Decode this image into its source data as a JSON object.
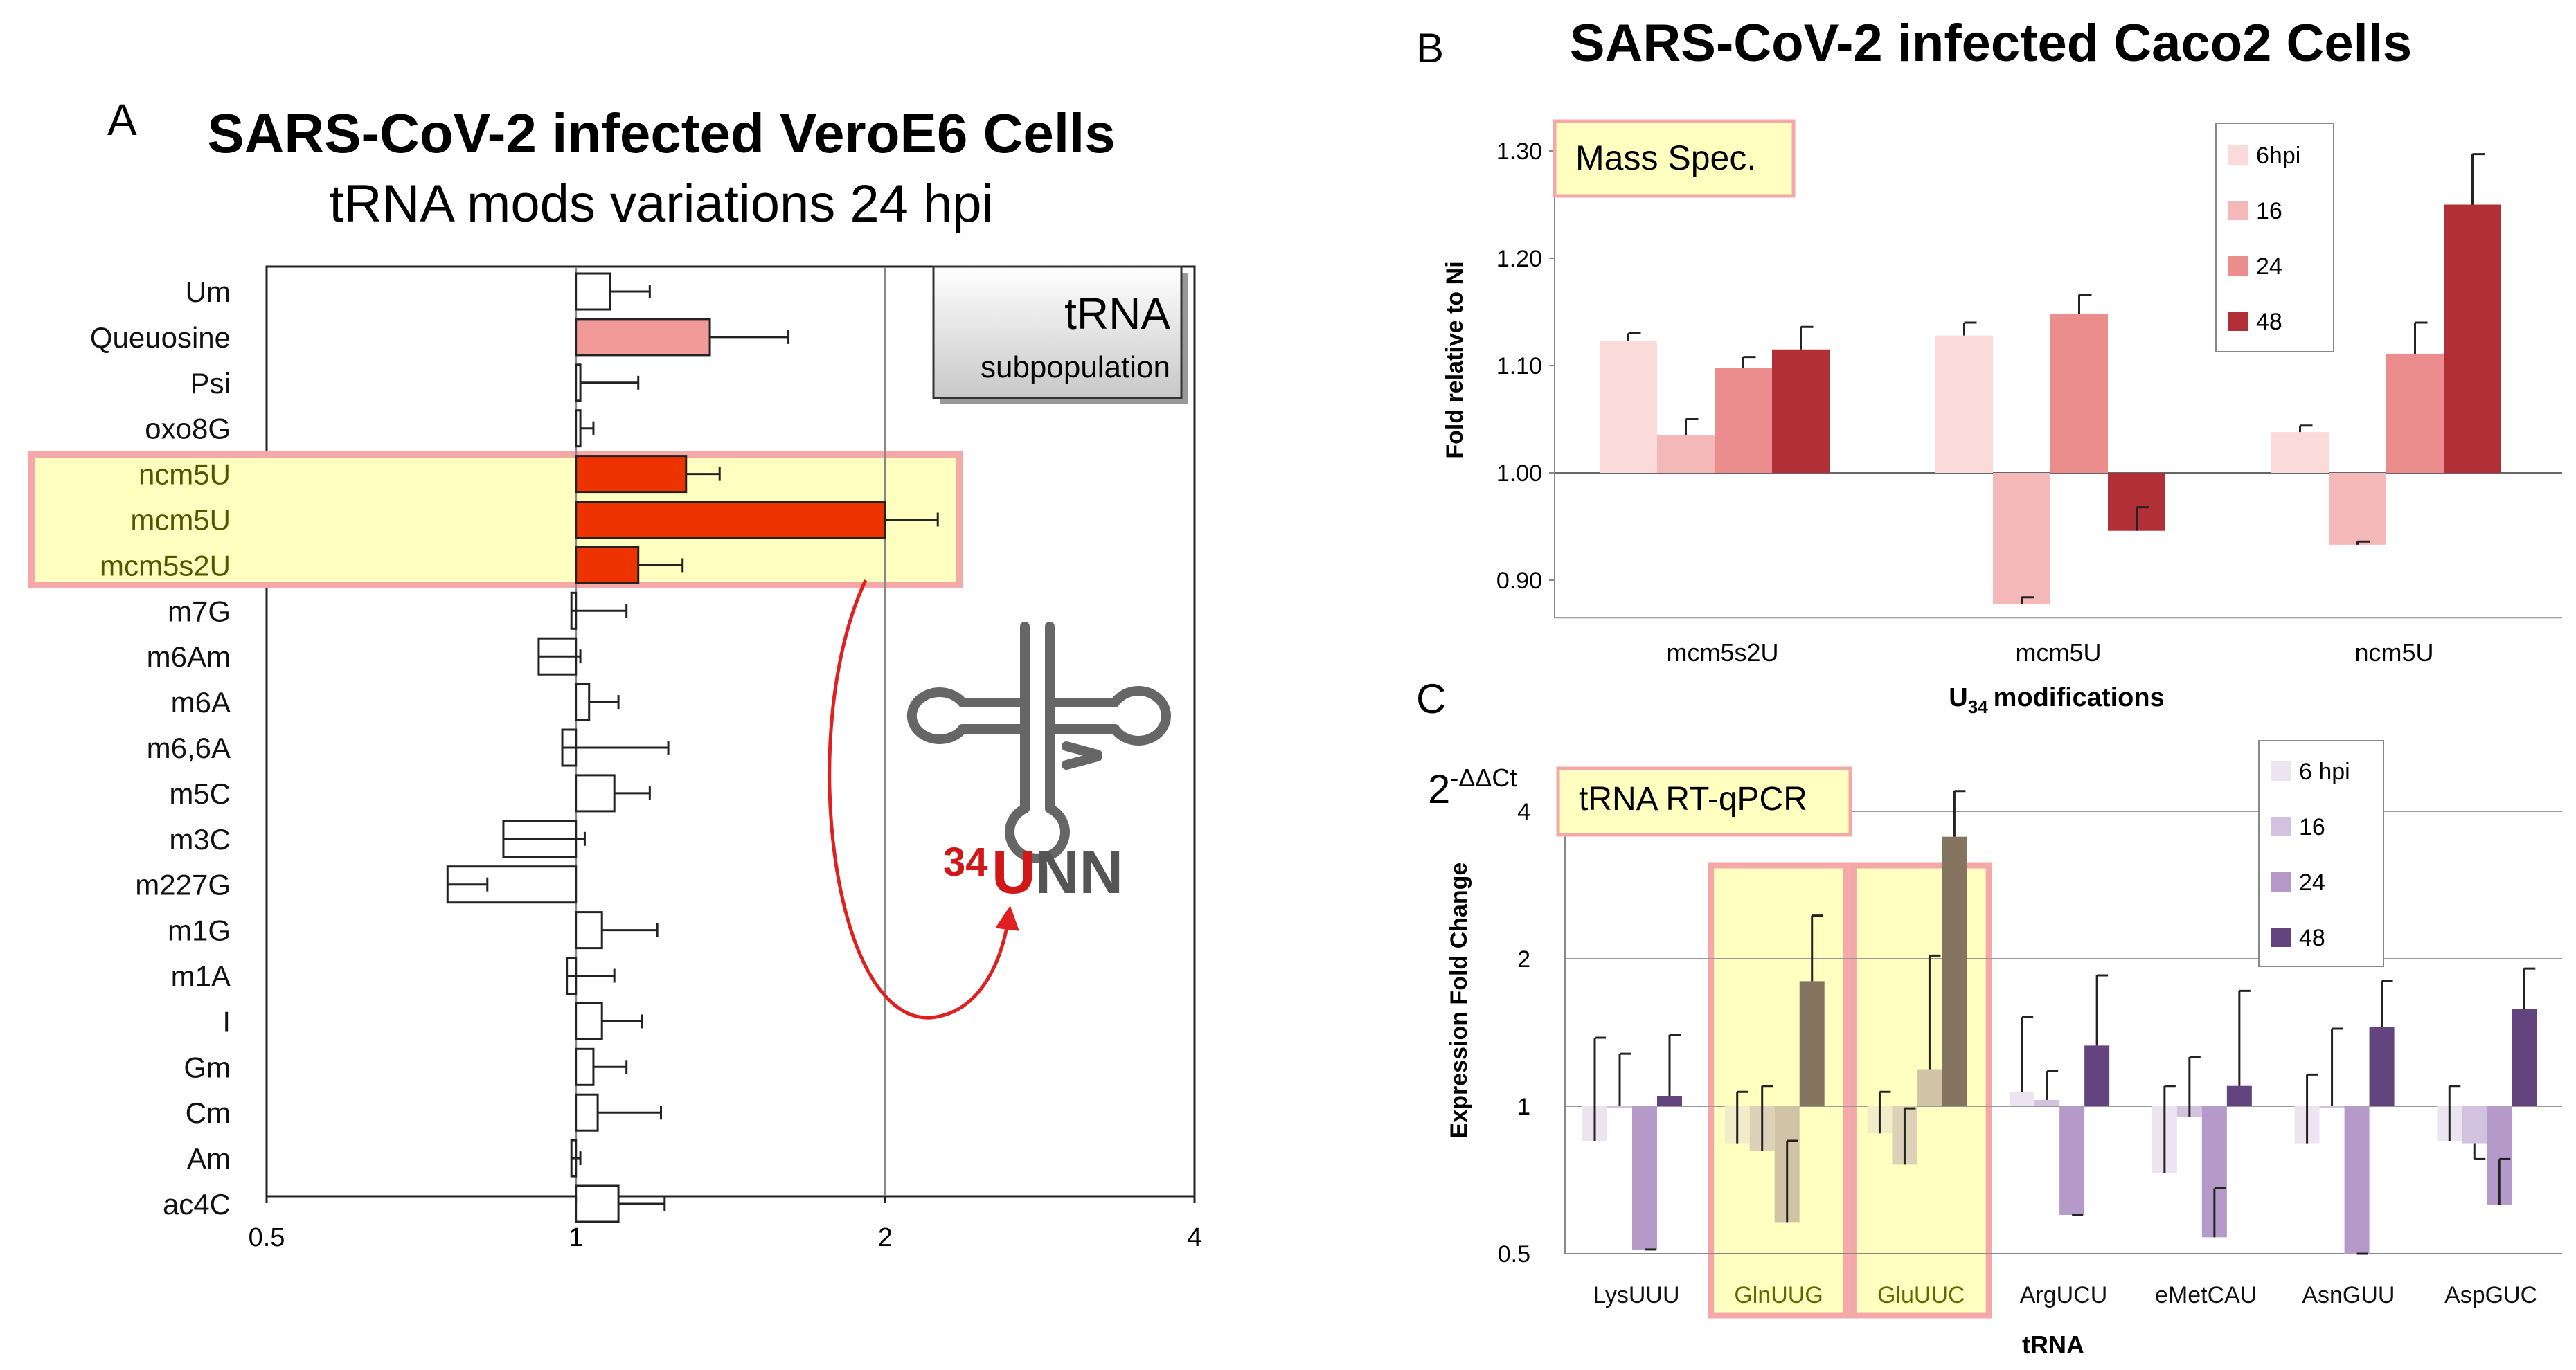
{
  "panelA": {
    "letter": "A",
    "title": "SARS-CoV-2 infected VeroE6 Cells",
    "subtitle": "tRNA mods variations 24 hpi",
    "box_title": "tRNA",
    "box_subtitle": "subpopulation",
    "colors": {
      "highlight_bar": "#ee3300",
      "queuosine_bar": "#f29a99",
      "default_bar": "#ffffff",
      "highlight_bg": "#ffffc0",
      "highlight_border": "#f4a8a8"
    },
    "chart_data": {
      "type": "bar",
      "orientation": "horizontal",
      "xscale": "log2",
      "xlim": [
        0.5,
        4
      ],
      "xticks": [
        "0.5",
        "1",
        "2",
        "4"
      ],
      "categories": [
        "Um",
        "Queuosine",
        "Psi",
        "oxo8G",
        "ncm5U",
        "mcm5U",
        "mcm5s2U",
        "m7G",
        "m6Am",
        "m6A",
        "m6,6A",
        "m5C",
        "m3C",
        "m227G",
        "m1G",
        "m1A",
        "I",
        "Gm",
        "Cm",
        "Am",
        "ac4C"
      ],
      "values": [
        1.08,
        1.35,
        1.01,
        1.01,
        1.28,
        2.0,
        1.15,
        0.99,
        0.92,
        1.03,
        0.97,
        1.09,
        0.85,
        0.75,
        1.06,
        0.98,
        1.06,
        1.04,
        1.05,
        0.99,
        1.1
      ],
      "error_high": [
        1.18,
        1.61,
        1.15,
        1.04,
        1.38,
        2.25,
        1.27,
        1.12,
        1.01,
        1.1,
        1.23,
        1.18,
        1.02,
        0.82,
        1.2,
        1.09,
        1.16,
        1.12,
        1.21,
        1.01,
        1.22
      ],
      "highlighted": [
        "ncm5U",
        "mcm5U",
        "mcm5s2U"
      ]
    },
    "annotation": {
      "superscript": "34",
      "letter_u": "U",
      "letters_nn": "NN"
    }
  },
  "panelB": {
    "letter": "B",
    "title": "SARS-CoV-2 infected Caco2 Cells",
    "label_box": "Mass Spec.",
    "colors": {
      "6hpi": "#fbdada",
      "16": "#f5b8b8",
      "24": "#ec8d8d",
      "48": "#b03035"
    },
    "chart_data": {
      "type": "bar",
      "baseline": 1.0,
      "ylim": [
        0.87,
        1.32
      ],
      "yticks": [
        "0.90",
        "1.00",
        "1.10",
        "1.20",
        "1.30"
      ],
      "ylabel": "Fold relative to Ni",
      "xlabel": "modifications",
      "xlabel_prefix": "U",
      "xlabel_sub": "34",
      "categories": [
        "mcm5s2U",
        "mcm5U",
        "ncm5U"
      ],
      "series": [
        {
          "name": "6hpi",
          "values": [
            1.123,
            1.128,
            1.038
          ],
          "error_high": [
            1.13,
            1.14,
            1.044
          ]
        },
        {
          "name": "16",
          "values": [
            1.035,
            0.878,
            0.933
          ],
          "error_high": [
            1.05,
            0.884,
            0.936
          ]
        },
        {
          "name": "24",
          "values": [
            1.098,
            1.148,
            1.111
          ],
          "error_high": [
            1.108,
            1.166,
            1.14
          ]
        },
        {
          "name": "48",
          "values": [
            1.115,
            0.946,
            1.25
          ],
          "error_high": [
            1.136,
            0.968,
            1.297
          ]
        }
      ],
      "legend": "top-right"
    }
  },
  "panelC": {
    "letter": "C",
    "label_box": "tRNA RT-qPCR",
    "axis_header_base": "2",
    "axis_header_sup": "-ΔΔCt",
    "colors": {
      "6 hpi": "#ece4f0",
      "16": "#d3c2df",
      "24": "#b59ac9",
      "48": "#63447f",
      "highlight_bg": "#ffffc0",
      "highlight_border": "#f4a8a8",
      "highlight_24": "#d1c4a6",
      "highlight_48": "#857560"
    },
    "chart_data": {
      "type": "bar",
      "yscale": "log2",
      "baseline": 1,
      "ylim": [
        0.5,
        4.8
      ],
      "yticks": [
        "0.5",
        "1",
        "2",
        "4"
      ],
      "ylabel": "Expression Fold Change",
      "xlabel": "tRNA",
      "categories": [
        "LysUUU",
        "GlnUUG",
        "GluUUC",
        "ArgUCU",
        "eMetCAU",
        "AsnGUU",
        "AspGUC"
      ],
      "highlighted": [
        "GlnUUG",
        "GluUUC"
      ],
      "series": [
        {
          "name": "6 hpi",
          "values": [
            0.85,
            0.84,
            0.88,
            1.07,
            0.73,
            0.84,
            0.85
          ],
          "error": [
            1.38,
            1.07,
            1.07,
            1.52,
            1.1,
            1.16,
            1.1
          ]
        },
        {
          "name": "16",
          "values": [
            1.0,
            0.81,
            0.76,
            1.03,
            0.95,
            1.0,
            0.84
          ],
          "error": [
            1.28,
            1.1,
            0.99,
            1.18,
            1.26,
            1.44,
            0.78
          ]
        },
        {
          "name": "24",
          "values": [
            0.51,
            0.58,
            1.19,
            0.6,
            0.54,
            0.5,
            0.63
          ],
          "error": [
            0.51,
            0.85,
            2.03,
            0.6,
            0.68,
            0.5,
            0.78
          ]
        },
        {
          "name": "48",
          "values": [
            1.05,
            1.8,
            3.55,
            1.33,
            1.1,
            1.45,
            1.58
          ],
          "error": [
            1.4,
            2.45,
            4.4,
            1.85,
            1.72,
            1.8,
            1.91
          ]
        }
      ],
      "legend": "top-right"
    }
  }
}
